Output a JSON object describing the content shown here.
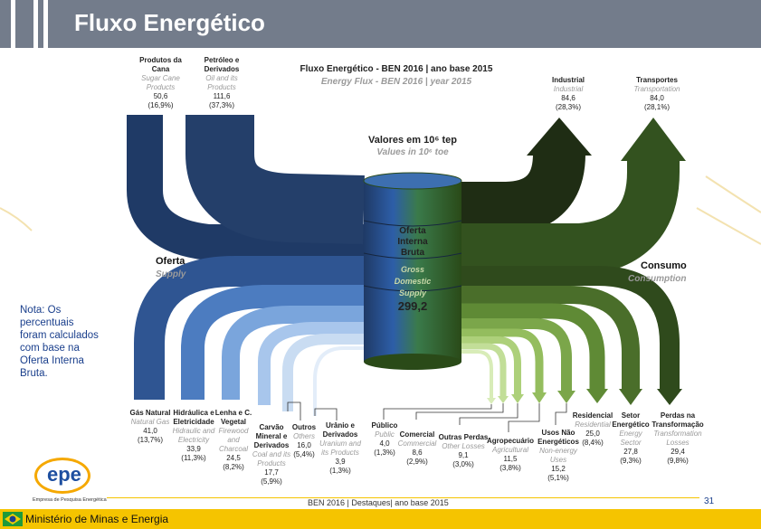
{
  "header": {
    "title": "Fluxo Energético"
  },
  "diagram": {
    "title_pt": "Fluxo Energético - BEN 2016 | ano base 2015",
    "title_en": "Energy Flux - BEN 2016 | year 2015",
    "units_pt": "Valores em 10⁶ tep",
    "units_en": "Values in 10⁶ toe",
    "supply_pt": "Oferta",
    "supply_en": "Supply",
    "consumption_pt": "Consumo",
    "consumption_en": "Consumption",
    "center_pt_1": "Oferta",
    "center_pt_2": "Interna",
    "center_pt_3": "Bruta",
    "center_en_1": "Gross",
    "center_en_2": "Domestic",
    "center_en_3": "Supply",
    "center_value": "299,2",
    "sources": [
      {
        "pt": "Produtos da Cana",
        "en": "Sugar Cane Products",
        "value": "50,6",
        "pct": "(16,9%)"
      },
      {
        "pt": "Petróleo e Derivados",
        "en": "Oil and its Products",
        "value": "111,6",
        "pct": "(37,3%)"
      },
      {
        "pt": "Gás Natural",
        "en": "Natural Gas",
        "value": "41,0",
        "pct": "(13,7%)"
      },
      {
        "pt": "Hidráulica e Eletricidade",
        "en": "Hidraulic and Electricity",
        "value": "33,9",
        "pct": "(11,3%)"
      },
      {
        "pt": "Lenha e C. Vegetal",
        "en": "Firewood and Charcoal",
        "value": "24,5",
        "pct": "(8,2%)"
      },
      {
        "pt": "Carvão Mineral e Derivados",
        "en": "Coal and its Products",
        "value": "17,7",
        "pct": "(5,9%)"
      },
      {
        "pt": "Outros",
        "en": "Others",
        "value": "16,0",
        "pct": "(5,4%)"
      },
      {
        "pt": "Urânio e Derivados",
        "en": "Uranium and its Products",
        "value": "3,9",
        "pct": "(1,3%)"
      }
    ],
    "uses": [
      {
        "pt": "Industrial",
        "en": "Industrial",
        "value": "84,6",
        "pct": "(28,3%)"
      },
      {
        "pt": "Transportes",
        "en": "Transportation",
        "value": "84,0",
        "pct": "(28,1%)"
      },
      {
        "pt": "Público",
        "en": "Public",
        "value": "4,0",
        "pct": "(1,3%)"
      },
      {
        "pt": "Comercial",
        "en": "Commercial",
        "value": "8,6",
        "pct": "(2,9%)"
      },
      {
        "pt": "Outras Perdas",
        "en": "Other Losses",
        "value": "9,1",
        "pct": "(3,0%)"
      },
      {
        "pt": "Agropecuário",
        "en": "Agricultural",
        "value": "11,5",
        "pct": "(3,8%)"
      },
      {
        "pt": "Usos Não Energéticos",
        "en": "Non-energy Uses",
        "value": "15,2",
        "pct": "(5,1%)"
      },
      {
        "pt": "Residencial",
        "en": "Residential",
        "value": "25,0",
        "pct": "(8,4%)"
      },
      {
        "pt": "Setor Energético",
        "en": "Energy Sector",
        "value": "27,8",
        "pct": "(9,3%)"
      },
      {
        "pt": "Perdas na Transformação",
        "en": "Transformation Losses",
        "value": "29,4",
        "pct": "(9,8%)"
      }
    ]
  },
  "note": "Nota: Os percentuais foram calculados com base na Oferta Interna Bruta.",
  "logo": {
    "text": "epe",
    "caption": "Empresa de Pesquisa Energética"
  },
  "footer": {
    "ministry": "Ministério de Minas e Energia",
    "caption": "BEN 2016 | Destaques| ano base 2015",
    "page": "31"
  },
  "colors": {
    "header_bg": "#737c8b",
    "supply_dark": "#1f3a66",
    "supply_light": "#c9dcf2",
    "use_dark": "#1f2d14",
    "use_light": "#d8ecb8",
    "footer_yellow": "#f5c400",
    "note_blue": "#1a3f8c"
  }
}
